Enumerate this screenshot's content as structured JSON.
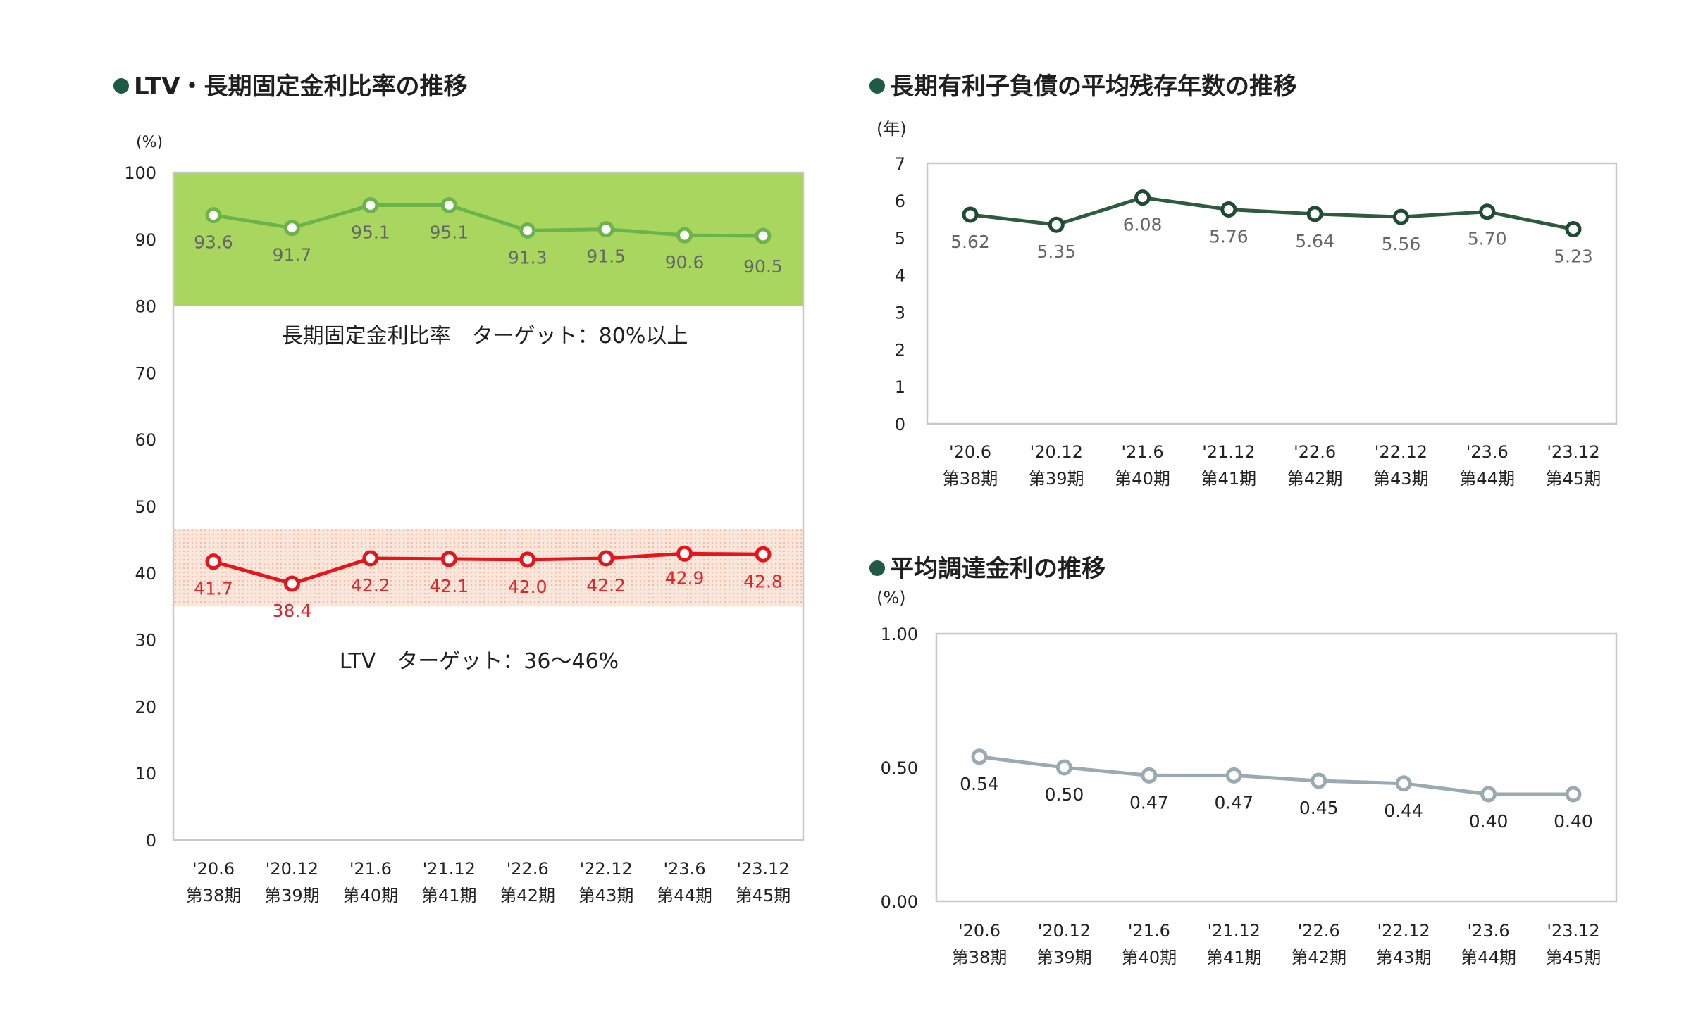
{
  "colors": {
    "title_bullet": "#1e5a45",
    "fixed_ratio_line": "#6cb34c",
    "fixed_ratio_band": "#a9d65e",
    "ltv_line": "#e8141c",
    "ltv_band": "#f6d2c4",
    "ltv_label": "#e0242a",
    "maturity_line": "#2e5a40",
    "maturity_marker": "#1f4a34",
    "rate_line": "#9aaab1",
    "data_label_gray": "#666666"
  },
  "chart_data": [
    {
      "id": "ltv_fixed",
      "type": "line",
      "title": "LTV・長期固定金利比率の推移",
      "unit": "(%)",
      "categories": [
        "'20.6",
        "'20.12",
        "'21.6",
        "'21.12",
        "'22.6",
        "'22.12",
        "'23.6",
        "'23.12"
      ],
      "periods": [
        "第38期",
        "第39期",
        "第40期",
        "第41期",
        "第42期",
        "第43期",
        "第44期",
        "第45期"
      ],
      "ylim": [
        0,
        100
      ],
      "yticks": [
        "0",
        "10",
        "20",
        "30",
        "40",
        "50",
        "60",
        "70",
        "80",
        "90",
        "100"
      ],
      "grid": false,
      "series": [
        {
          "values": [
            93.6,
            91.7,
            95.1,
            95.1,
            91.3,
            91.5,
            90.6,
            90.5
          ],
          "labels": [
            "93.6",
            "91.7",
            "95.1",
            "95.1",
            "91.3",
            "91.5",
            "90.6",
            "90.5"
          ]
        },
        {
          "values": [
            41.7,
            38.4,
            42.2,
            42.1,
            42.0,
            42.2,
            42.9,
            42.8
          ],
          "labels": [
            "41.7",
            "38.4",
            "42.2",
            "42.1",
            "42.0",
            "42.2",
            "42.9",
            "42.8"
          ]
        }
      ],
      "bands": [
        {
          "from": 80,
          "to": 100
        },
        {
          "from": 35,
          "to": 46.5
        }
      ],
      "annotations": {
        "fixed_target": "長期固定金利比率　ターゲット：80%以上",
        "ltv_target": "LTV　ターゲット：36～46%"
      }
    },
    {
      "id": "maturity",
      "type": "line",
      "title": "長期有利子負債の平均残存年数の推移",
      "unit": "(年)",
      "categories": [
        "'20.6",
        "'20.12",
        "'21.6",
        "'21.12",
        "'22.6",
        "'22.12",
        "'23.6",
        "'23.12"
      ],
      "periods": [
        "第38期",
        "第39期",
        "第40期",
        "第41期",
        "第42期",
        "第43期",
        "第44期",
        "第45期"
      ],
      "ylim": [
        0,
        7
      ],
      "yticks": [
        "0",
        "1",
        "2",
        "3",
        "4",
        "5",
        "6",
        "7"
      ],
      "grid": false,
      "series": [
        {
          "values": [
            5.62,
            5.35,
            6.08,
            5.76,
            5.64,
            5.56,
            5.7,
            5.23
          ],
          "labels": [
            "5.62",
            "5.35",
            "6.08",
            "5.76",
            "5.64",
            "5.56",
            "5.70",
            "5.23"
          ]
        }
      ]
    },
    {
      "id": "rate",
      "type": "line",
      "title": "平均調達金利の推移",
      "unit": "(%)",
      "categories": [
        "'20.6",
        "'20.12",
        "'21.6",
        "'21.12",
        "'22.6",
        "'22.12",
        "'23.6",
        "'23.12"
      ],
      "periods": [
        "第38期",
        "第39期",
        "第40期",
        "第41期",
        "第42期",
        "第43期",
        "第44期",
        "第45期"
      ],
      "ylim": [
        0,
        1
      ],
      "yticks": [
        "0.00",
        "0.50",
        "1.00"
      ],
      "grid": false,
      "series": [
        {
          "values": [
            0.54,
            0.5,
            0.47,
            0.47,
            0.45,
            0.44,
            0.4,
            0.4
          ],
          "labels": [
            "0.54",
            "0.50",
            "0.47",
            "0.47",
            "0.45",
            "0.44",
            "0.40",
            "0.40"
          ]
        }
      ]
    }
  ]
}
